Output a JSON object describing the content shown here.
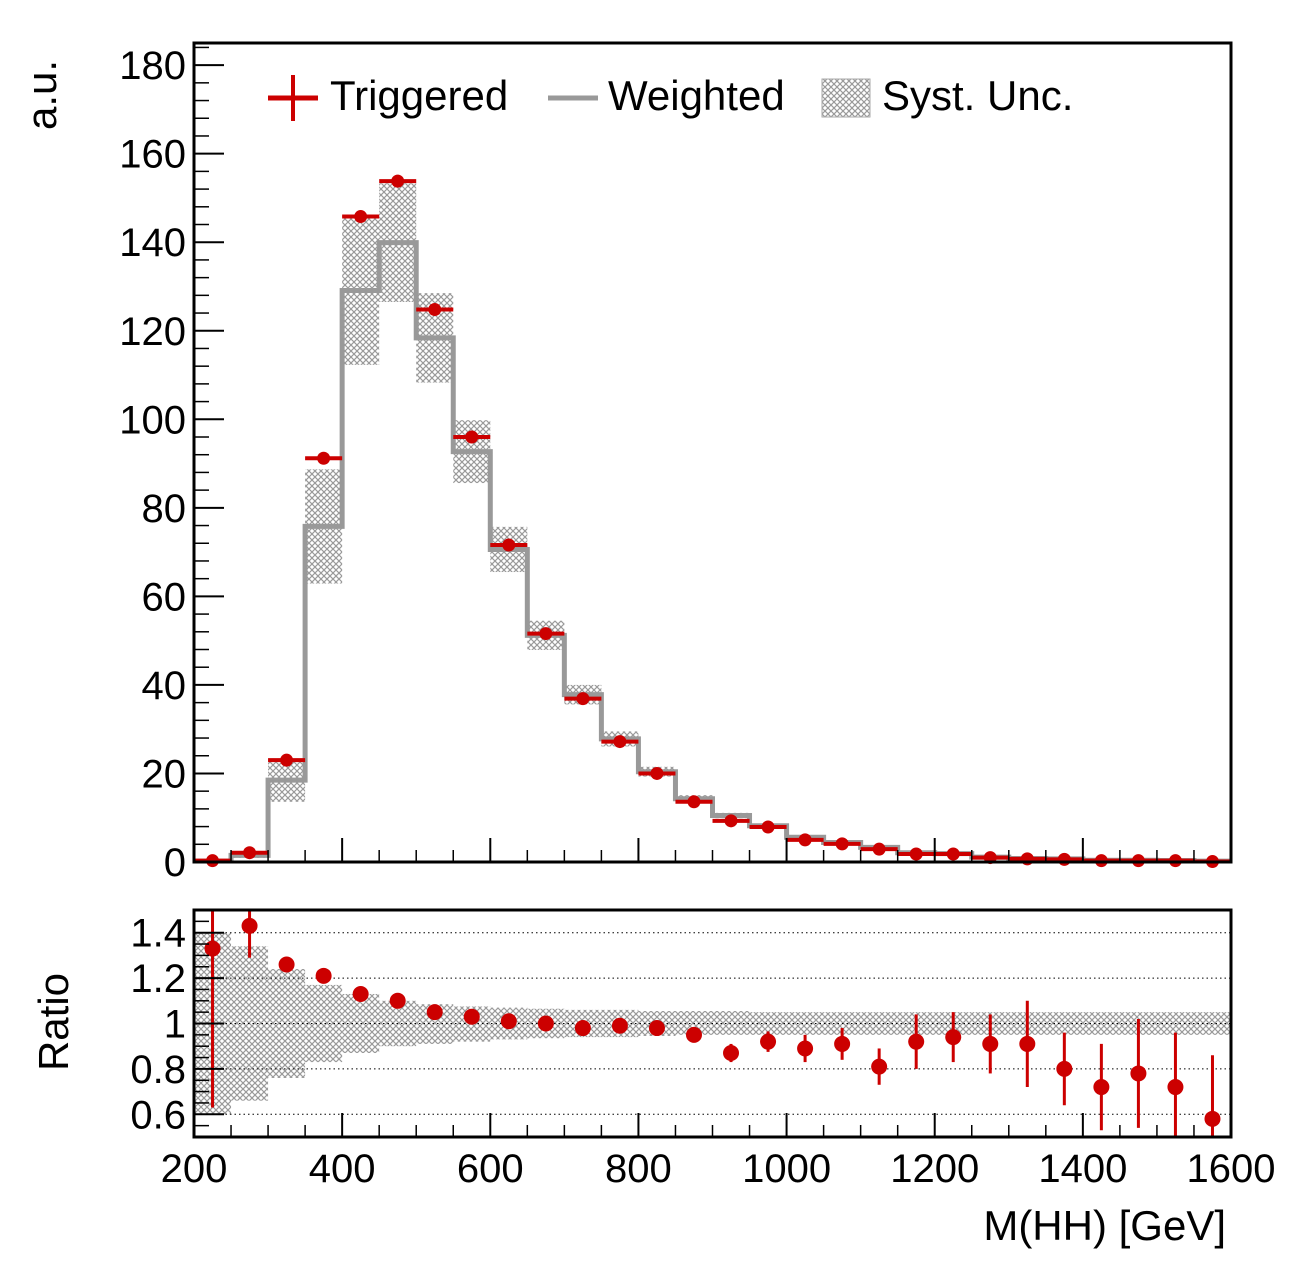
{
  "chart_data": {
    "type": "histogram_with_ratio",
    "x_edges": [
      200,
      250,
      300,
      350,
      400,
      450,
      500,
      550,
      600,
      650,
      700,
      750,
      800,
      850,
      900,
      950,
      1000,
      1050,
      1100,
      1150,
      1200,
      1250,
      1300,
      1350,
      1400,
      1450,
      1500,
      1550,
      1600
    ],
    "xlim": [
      200,
      1600
    ],
    "xlabel": "M(HH) [GeV]",
    "x_ticks": [
      "200",
      "400",
      "600",
      "800",
      "1000",
      "1200",
      "1400",
      "1600"
    ],
    "x_tick_values": [
      200,
      400,
      600,
      800,
      1000,
      1200,
      1400,
      1600
    ],
    "main": {
      "ylabel": "a.u.",
      "ylim": [
        0,
        185
      ],
      "y_ticks": [
        "0",
        "20",
        "40",
        "60",
        "80",
        "100",
        "120",
        "140",
        "160",
        "180"
      ],
      "y_tick_values": [
        0,
        20,
        40,
        60,
        80,
        100,
        120,
        140,
        160,
        180
      ],
      "legend_position": "top",
      "series": [
        {
          "name": "Triggered",
          "style": "points-with-errors",
          "color": "#cc0000",
          "values": [
            0.3,
            2.1,
            23.0,
            91.2,
            145.8,
            153.8,
            124.8,
            96.0,
            71.6,
            51.6,
            36.9,
            27.2,
            20.0,
            13.6,
            9.3,
            7.9,
            5.0,
            4.1,
            2.9,
            1.8,
            1.8,
            1.0,
            0.7,
            0.6,
            0.3,
            0.3,
            0.3,
            0.1
          ],
          "errors": [
            0.3,
            0.6,
            0.8,
            1.1,
            1.3,
            1.4,
            1.2,
            1.1,
            0.9,
            0.8,
            0.7,
            0.6,
            0.5,
            0.4,
            0.4,
            0.3,
            0.3,
            0.2,
            0.2,
            0.2,
            0.2,
            0.1,
            0.1,
            0.1,
            0.1,
            0.1,
            0.1,
            0.1
          ]
        },
        {
          "name": "Weighted",
          "style": "step-line",
          "color": "#999999",
          "values": [
            0.2,
            1.5,
            18.5,
            75.8,
            129.1,
            139.9,
            118.4,
            92.7,
            70.6,
            51.2,
            37.8,
            27.8,
            20.4,
            14.3,
            10.5,
            8.2,
            5.6,
            4.4,
            3.3,
            2.1,
            1.9,
            1.1,
            0.8,
            0.7,
            0.4,
            0.4,
            0.35,
            0.2
          ]
        },
        {
          "name": "Syst. Unc.",
          "style": "hatched-band",
          "color": "#aaaaaa",
          "low": [
            0.12,
            0.95,
            13.6,
            62.9,
            112.3,
            126.5,
            108.3,
            85.6,
            65.5,
            47.9,
            35.6,
            26.1,
            19.3,
            13.5,
            9.9,
            7.7,
            5.25,
            4.15,
            3.1,
            1.98,
            1.78,
            1.03,
            0.75,
            0.66,
            0.37,
            0.37,
            0.33,
            0.19
          ],
          "high": [
            0.28,
            2.05,
            23.4,
            88.7,
            145.9,
            153.3,
            128.5,
            99.8,
            75.7,
            54.5,
            40.0,
            29.5,
            21.5,
            15.1,
            11.1,
            8.7,
            5.95,
            4.65,
            3.5,
            2.22,
            2.02,
            1.17,
            0.85,
            0.74,
            0.43,
            0.43,
            0.37,
            0.21
          ]
        }
      ],
      "legend": [
        "Triggered",
        "Weighted",
        "Syst. Unc."
      ]
    },
    "ratio": {
      "ylabel": "Ratio",
      "ylim": [
        0.5,
        1.5
      ],
      "y_ticks": [
        "0.6",
        "0.8",
        "1",
        "1.2",
        "1.4"
      ],
      "y_tick_values": [
        0.6,
        0.8,
        1.0,
        1.2,
        1.4
      ],
      "grid": "dotted-horizontal",
      "points": [
        1.33,
        1.43,
        1.26,
        1.21,
        1.13,
        1.1,
        1.05,
        1.03,
        1.01,
        1.0,
        0.98,
        0.99,
        0.98,
        0.95,
        0.87,
        0.92,
        0.89,
        0.91,
        0.81,
        0.92,
        0.94,
        0.91,
        0.91,
        0.8,
        0.72,
        0.78,
        0.72,
        0.58
      ],
      "errors": [
        0.7,
        0.14,
        0.03,
        0.02,
        0.01,
        0.01,
        0.01,
        0.015,
        0.015,
        0.02,
        0.02,
        0.025,
        0.025,
        0.03,
        0.04,
        0.045,
        0.06,
        0.07,
        0.08,
        0.12,
        0.11,
        0.13,
        0.19,
        0.16,
        0.19,
        0.24,
        0.24,
        0.28
      ],
      "band_low": [
        0.6,
        0.66,
        0.76,
        0.83,
        0.87,
        0.9,
        0.91,
        0.92,
        0.93,
        0.935,
        0.94,
        0.94,
        0.945,
        0.95,
        0.95,
        0.95,
        0.95,
        0.95,
        0.95,
        0.95,
        0.95,
        0.95,
        0.95,
        0.95,
        0.95,
        0.95,
        0.95,
        0.95
      ],
      "band_high": [
        1.4,
        1.34,
        1.24,
        1.17,
        1.13,
        1.1,
        1.085,
        1.075,
        1.07,
        1.065,
        1.06,
        1.06,
        1.055,
        1.055,
        1.055,
        1.05,
        1.05,
        1.05,
        1.05,
        1.05,
        1.05,
        1.05,
        1.05,
        1.05,
        1.05,
        1.05,
        1.05,
        1.05
      ]
    }
  },
  "colors": {
    "triggered": "#cc0000",
    "weighted": "#999999",
    "band": "#a8a8a8",
    "frame": "#000000"
  }
}
